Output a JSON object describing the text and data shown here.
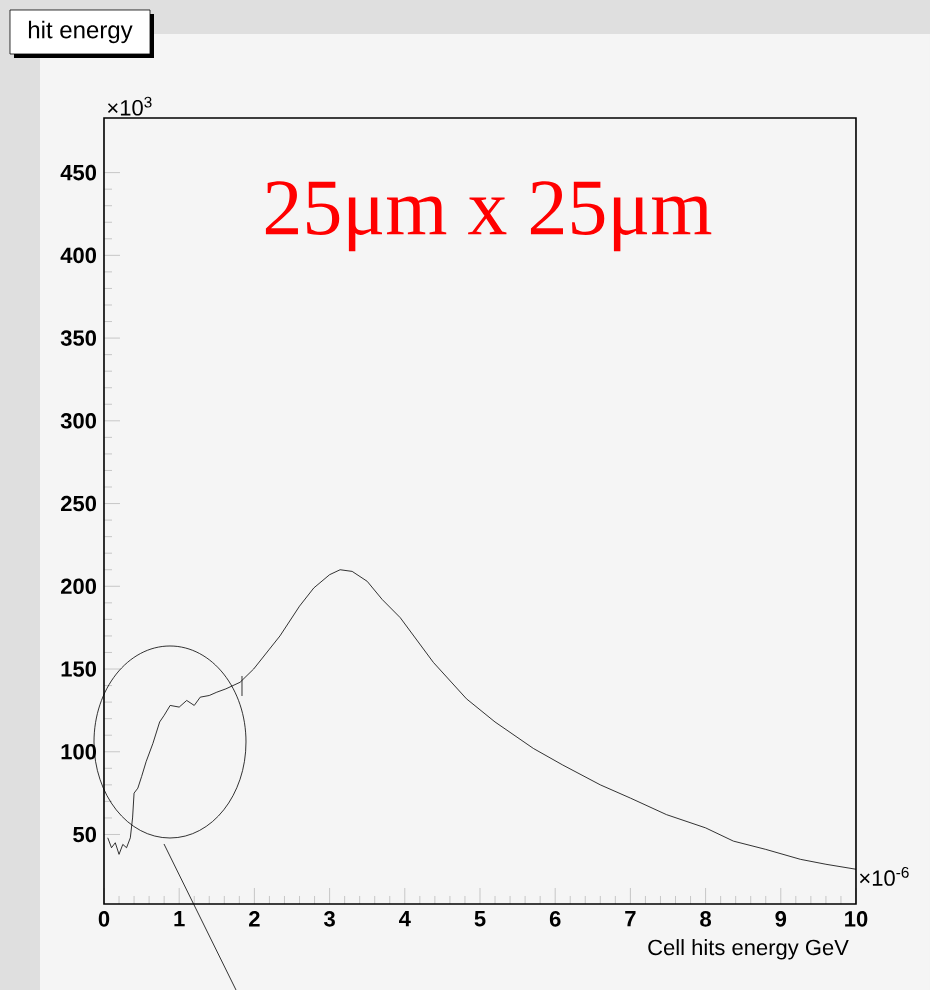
{
  "chart_data": {
    "type": "line",
    "title": "hit energy",
    "xlabel": "Cell hits energy    GeV",
    "annotations": [
      "×10$^{3}$",
      "×10$^{-6}$",
      "25μm x 25μm"
    ],
    "x": [
      0.05,
      0.1,
      0.15,
      0.2,
      0.25,
      0.3,
      0.35,
      0.38,
      0.4,
      0.45,
      0.5,
      0.56,
      0.65,
      0.74,
      0.8,
      0.88,
      1.0,
      1.1,
      1.2,
      1.28,
      1.4,
      1.5,
      1.62,
      1.81,
      1.99,
      2.2,
      2.34,
      2.6,
      2.79,
      3.0,
      3.14,
      3.3,
      3.5,
      3.7,
      3.94,
      4.38,
      4.82,
      5.2,
      5.71,
      6.1,
      6.6,
      7.0,
      7.48,
      8.0,
      8.37,
      8.8,
      9.26,
      9.6,
      10
    ],
    "series": [
      {
        "color": "#000000",
        "values": [
          48,
          42,
          45,
          38,
          44,
          42,
          48,
          60,
          75,
          78,
          85,
          94,
          105,
          118,
          122,
          128,
          127,
          131,
          128,
          133,
          134,
          136,
          138,
          142,
          150,
          162,
          170,
          188,
          199,
          207,
          210,
          209,
          203,
          192,
          181,
          154,
          132,
          118,
          102,
          92,
          80,
          72,
          62,
          54,
          46,
          41,
          35,
          32,
          29
        ]
      }
    ],
    "xlim": [
      0,
      10
    ],
    "ylim": [
      8,
      483
    ],
    "xticks": [
      0,
      1,
      2,
      3,
      4,
      5,
      6,
      7,
      8,
      9,
      10
    ],
    "yticks": [
      50,
      100,
      150,
      200,
      250,
      300,
      350,
      400,
      450
    ],
    "grid": false,
    "marker": "none",
    "line_style": "solid"
  }
}
